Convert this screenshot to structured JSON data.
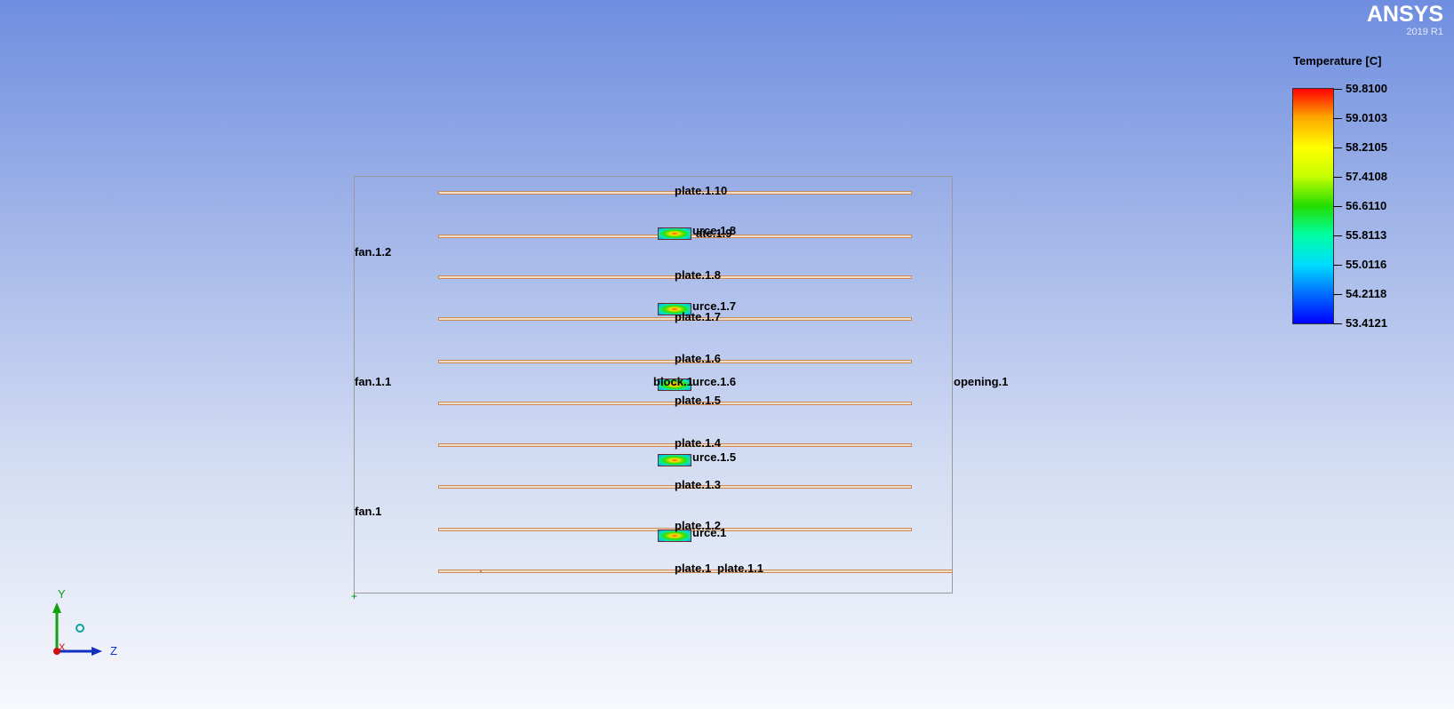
{
  "brand": {
    "name": "ANSYS",
    "version": "2019 R1"
  },
  "legend": {
    "title": "Temperature [C]",
    "values": [
      "59.8100",
      "59.0103",
      "58.2105",
      "57.4108",
      "56.6110",
      "55.8113",
      "55.0116",
      "54.2118",
      "53.4121"
    ]
  },
  "labels": {
    "plate_1_10": "plate.1.10",
    "source_8": "urce.1.8",
    "plate_1_9": "ate.1.9",
    "fan_1_2": "fan.1.2",
    "plate_1_8": "plate.1.8",
    "source_7": "urce.1.7",
    "plate_1_7": "plate.1.7",
    "plate_1_6": "plate.1.6",
    "fan_1_1": "fan.1.1",
    "block_1": "block.1",
    "source_6": "urce.1.6",
    "opening_1": "opening.1",
    "plate_1_5": "plate.1.5",
    "plate_1_4": "plate.1.4",
    "source_5": "urce.1.5",
    "plate_1_3": "plate.1.3",
    "fan_1": "fan.1",
    "plate_1_2": "plate.1.2",
    "source_1": "urce.1",
    "plate_1": "plate.1",
    "plate_1_1": "plate.1.1"
  },
  "triad": {
    "y_label": "Y",
    "z_label": "Z",
    "x_label": "X"
  }
}
